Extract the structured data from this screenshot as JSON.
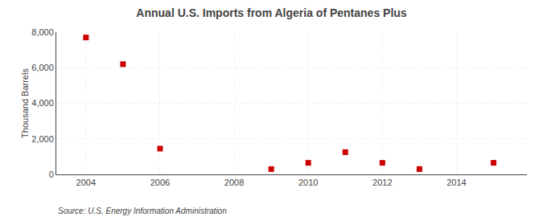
{
  "chart_data": {
    "type": "scatter",
    "title": "Annual U.S. Imports from Algeria of Pentanes Plus",
    "ylabel": "Thousand Barrels",
    "source": "Source: U.S. Energy Information Administration",
    "x": [
      2004,
      2005,
      2006,
      2009,
      2010,
      2011,
      2012,
      2013,
      2015
    ],
    "values": [
      7700,
      6200,
      1450,
      300,
      650,
      1250,
      650,
      300,
      650
    ],
    "color": "#cc0000",
    "marker": "square",
    "xlim": [
      2003.2,
      2015.9
    ],
    "ylim": [
      0,
      8000
    ],
    "xticks": [
      2004,
      2006,
      2008,
      2010,
      2012,
      2014
    ],
    "yticks": [
      0,
      {
        "value": 2000,
        "label": "2,000"
      },
      {
        "value": 4000,
        "label": "4,000"
      },
      {
        "value": 6000,
        "label": "6,000"
      },
      {
        "value": 8000,
        "label": "8,000"
      }
    ],
    "grid": true
  }
}
